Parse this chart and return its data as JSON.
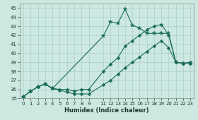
{
  "xlabel": "Humidex (Indice chaleur)",
  "bg_color": "#cce8e0",
  "grid_color": "#aad0c8",
  "line_color": "#1a6b5a",
  "xlim": [
    -0.5,
    23.5
  ],
  "ylim": [
    35,
    45.5
  ],
  "xticks": [
    0,
    1,
    2,
    3,
    4,
    5,
    6,
    7,
    8,
    9,
    11,
    12,
    13,
    14,
    15,
    16,
    17,
    18,
    19,
    20,
    21,
    22,
    23
  ],
  "yticks": [
    35,
    36,
    37,
    38,
    39,
    40,
    41,
    42,
    43,
    44,
    45
  ],
  "line1_x": [
    0,
    1,
    2,
    3,
    4,
    5,
    6,
    7,
    8,
    9,
    11,
    12,
    13,
    14,
    15,
    16,
    17,
    18,
    19,
    20,
    21,
    22,
    23
  ],
  "line1_y": [
    35.2,
    35.8,
    36.3,
    36.6,
    36.1,
    35.9,
    35.7,
    35.5,
    35.5,
    35.5,
    36.5,
    37.0,
    37.7,
    38.4,
    39.0,
    39.6,
    40.2,
    40.8,
    41.4,
    40.6,
    39.0,
    38.9,
    39.0
  ],
  "line2_x": [
    0,
    1,
    2,
    3,
    4,
    5,
    6,
    7,
    8,
    9,
    11,
    12,
    13,
    14,
    15,
    16,
    17,
    18,
    19,
    20,
    21,
    22,
    23
  ],
  "line2_y": [
    35.2,
    35.8,
    36.3,
    36.6,
    36.1,
    36.0,
    36.0,
    35.8,
    36.0,
    36.0,
    38.0,
    38.8,
    39.5,
    40.8,
    41.4,
    42.0,
    42.6,
    43.0,
    43.2,
    42.0,
    39.0,
    38.9,
    38.9
  ],
  "line3_x": [
    0,
    1,
    2,
    3,
    4,
    11,
    12,
    13,
    14,
    15,
    16,
    17,
    18,
    19,
    20,
    21,
    22,
    23
  ],
  "line3_y": [
    35.2,
    35.8,
    36.3,
    36.6,
    36.1,
    41.9,
    43.5,
    43.3,
    44.9,
    43.1,
    42.8,
    42.2,
    42.2,
    42.2,
    42.2,
    39.0,
    38.9,
    38.9
  ],
  "marker_size": 2.5,
  "line_width": 0.8,
  "tick_fontsize": 5.0,
  "xlabel_fontsize": 6.0
}
